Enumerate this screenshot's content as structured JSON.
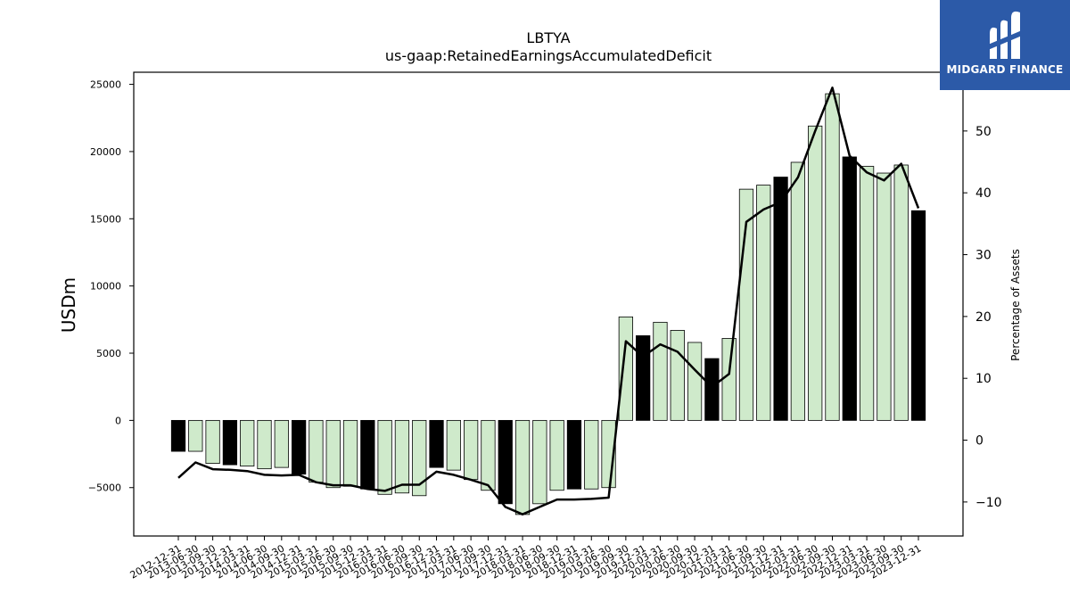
{
  "chart_data": {
    "type": "bar",
    "title": "LBTYA",
    "subtitle": "us-gaap:RetainedEarningsAccumulatedDeficit",
    "ylabel": "USDm",
    "y2label": "Percentage of Assets",
    "ylim": [
      -8600,
      25900
    ],
    "y2lim": [
      -15.5,
      59.5
    ],
    "yticks": [
      -5000,
      0,
      5000,
      10000,
      15000,
      20000,
      25000
    ],
    "y2ticks": [
      -10,
      0,
      10,
      20,
      30,
      40,
      50
    ],
    "categories": [
      "2012-12-31",
      "2013-06-30",
      "2013-09-30",
      "2013-12-31",
      "2014-03-31",
      "2014-06-30",
      "2014-09-30",
      "2014-12-31",
      "2015-03-31",
      "2015-06-30",
      "2015-09-30",
      "2015-12-31",
      "2016-03-31",
      "2016-06-30",
      "2016-09-30",
      "2016-12-31",
      "2017-03-31",
      "2017-06-30",
      "2017-09-30",
      "2017-12-31",
      "2018-03-31",
      "2018-06-30",
      "2018-09-30",
      "2018-12-31",
      "2019-03-31",
      "2019-06-30",
      "2019-09-30",
      "2019-12-31",
      "2020-03-31",
      "2020-06-30",
      "2020-09-30",
      "2020-12-31",
      "2021-03-31",
      "2021-06-30",
      "2021-09-30",
      "2021-12-31",
      "2022-03-31",
      "2022-06-30",
      "2022-09-30",
      "2022-12-31",
      "2023-03-31",
      "2023-06-30",
      "2023-09-30",
      "2023-12-31"
    ],
    "series": [
      {
        "values": [
          -2300,
          -2300,
          -3200,
          -3300,
          -3400,
          -3600,
          -3500,
          -4000,
          -4600,
          -5000,
          -4900,
          -5100,
          -5500,
          -5400,
          -5600,
          -3500,
          -3700,
          -4400,
          -5200,
          -6200,
          -7000,
          -6200,
          -5200,
          -5100,
          -5100,
          -5000,
          7700,
          6300,
          7300,
          6700,
          5800,
          4600,
          6100,
          17200,
          17500,
          18100,
          19200,
          21900,
          24300,
          19600,
          18900,
          18400,
          19000,
          15600
        ],
        "highlight": [
          true,
          false,
          false,
          true,
          false,
          false,
          false,
          true,
          false,
          false,
          false,
          true,
          false,
          false,
          false,
          true,
          false,
          false,
          false,
          true,
          false,
          false,
          false,
          true,
          false,
          false,
          false,
          true,
          false,
          false,
          false,
          true,
          false,
          false,
          false,
          true,
          false,
          false,
          false,
          true,
          false,
          false,
          false,
          true
        ]
      },
      {
        "axis": "right",
        "type": "line",
        "values": [
          -6.1,
          -3.6,
          -4.7,
          -4.8,
          -5.0,
          -5.6,
          -5.7,
          -5.6,
          -6.8,
          -7.3,
          -7.3,
          -7.9,
          -8.2,
          -7.2,
          -7.2,
          -5.1,
          -5.6,
          -6.4,
          -7.3,
          -10.8,
          -12.0,
          -10.8,
          -9.6,
          -9.6,
          -9.5,
          -9.3,
          16.0,
          13.5,
          15.5,
          14.3,
          11.4,
          8.6,
          10.7,
          35.3,
          37.3,
          38.5,
          42.5,
          50.0,
          57.0,
          46.0,
          43.3,
          42.0,
          44.7,
          37.5
        ]
      }
    ],
    "colors": {
      "bar": "#cfeacb",
      "bar_highlight": "#000000",
      "bar_edge": "#000000",
      "line": "#000000"
    },
    "grid": false
  },
  "logo": {
    "text": "MIDGARD FINANCE",
    "background": "#2c5aa8"
  }
}
